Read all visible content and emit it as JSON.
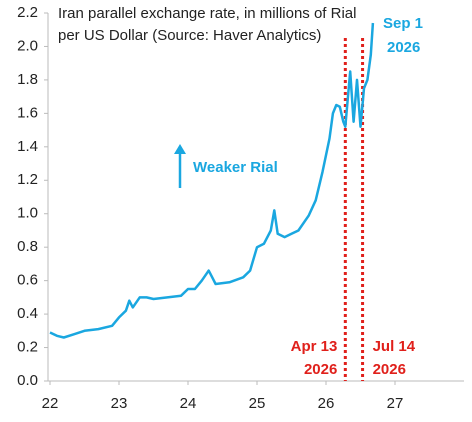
{
  "chart_data": {
    "type": "line",
    "title_lines": [
      "Iran parallel exchange rate, in millions of Rial",
      "per US Dollar (Source: Haver Analytics)"
    ],
    "series": [
      {
        "color": "#1aa7e0",
        "x": [
          22.0,
          22.1,
          22.2,
          22.35,
          22.5,
          22.7,
          22.9,
          23.0,
          23.1,
          23.15,
          23.2,
          23.3,
          23.4,
          23.5,
          23.7,
          23.9,
          24.0,
          24.1,
          24.2,
          24.3,
          24.35,
          24.4,
          24.6,
          24.8,
          24.9,
          25.0,
          25.1,
          25.2,
          25.25,
          25.3,
          25.4,
          25.5,
          25.6,
          25.75,
          25.85,
          25.95,
          26.05,
          26.1,
          26.15,
          26.2,
          26.25,
          26.28,
          26.35,
          26.4,
          26.45,
          26.5,
          26.55,
          26.6,
          26.65,
          26.68
        ],
        "values": [
          0.29,
          0.27,
          0.26,
          0.28,
          0.3,
          0.31,
          0.33,
          0.38,
          0.42,
          0.48,
          0.44,
          0.5,
          0.5,
          0.49,
          0.5,
          0.51,
          0.55,
          0.55,
          0.6,
          0.66,
          0.62,
          0.58,
          0.59,
          0.62,
          0.66,
          0.8,
          0.82,
          0.9,
          1.02,
          0.88,
          0.86,
          0.88,
          0.9,
          0.99,
          1.08,
          1.25,
          1.45,
          1.6,
          1.65,
          1.64,
          1.55,
          1.52,
          1.85,
          1.55,
          1.8,
          1.52,
          1.75,
          1.8,
          1.95,
          2.14
        ]
      }
    ],
    "xlim": [
      22,
      28
    ],
    "xticks": [
      22,
      23,
      24,
      25,
      26,
      27
    ],
    "ylim": [
      0,
      2.2
    ],
    "yticks": [
      {
        "value": 0,
        "label": "0.0"
      },
      {
        "value": 0.2,
        "label": "0.2"
      },
      {
        "value": 0.4,
        "label": "0.4"
      },
      {
        "value": 0.6,
        "label": "0.6"
      },
      {
        "value": 0.8,
        "label": "0.8"
      },
      {
        "value": 1,
        "label": "1.0"
      },
      {
        "value": 1.2,
        "label": "1.2"
      },
      {
        "value": 1.4,
        "label": "1.4"
      },
      {
        "value": 1.6,
        "label": "1.6"
      },
      {
        "value": 1.8,
        "label": "1.8"
      },
      {
        "value": 2,
        "label": "2.0"
      },
      {
        "value": 2.2,
        "label": "2.2"
      }
    ],
    "vlines": [
      {
        "x": 26.28,
        "color": "#e0201b",
        "label": [
          "Apr 13",
          "2026"
        ]
      },
      {
        "x": 26.53,
        "color": "#e0201b",
        "label": [
          "Jul 14",
          "2026"
        ]
      }
    ],
    "end_label": [
      "Sep 1",
      "2026"
    ],
    "arrow_label": "Weaker Rial"
  }
}
